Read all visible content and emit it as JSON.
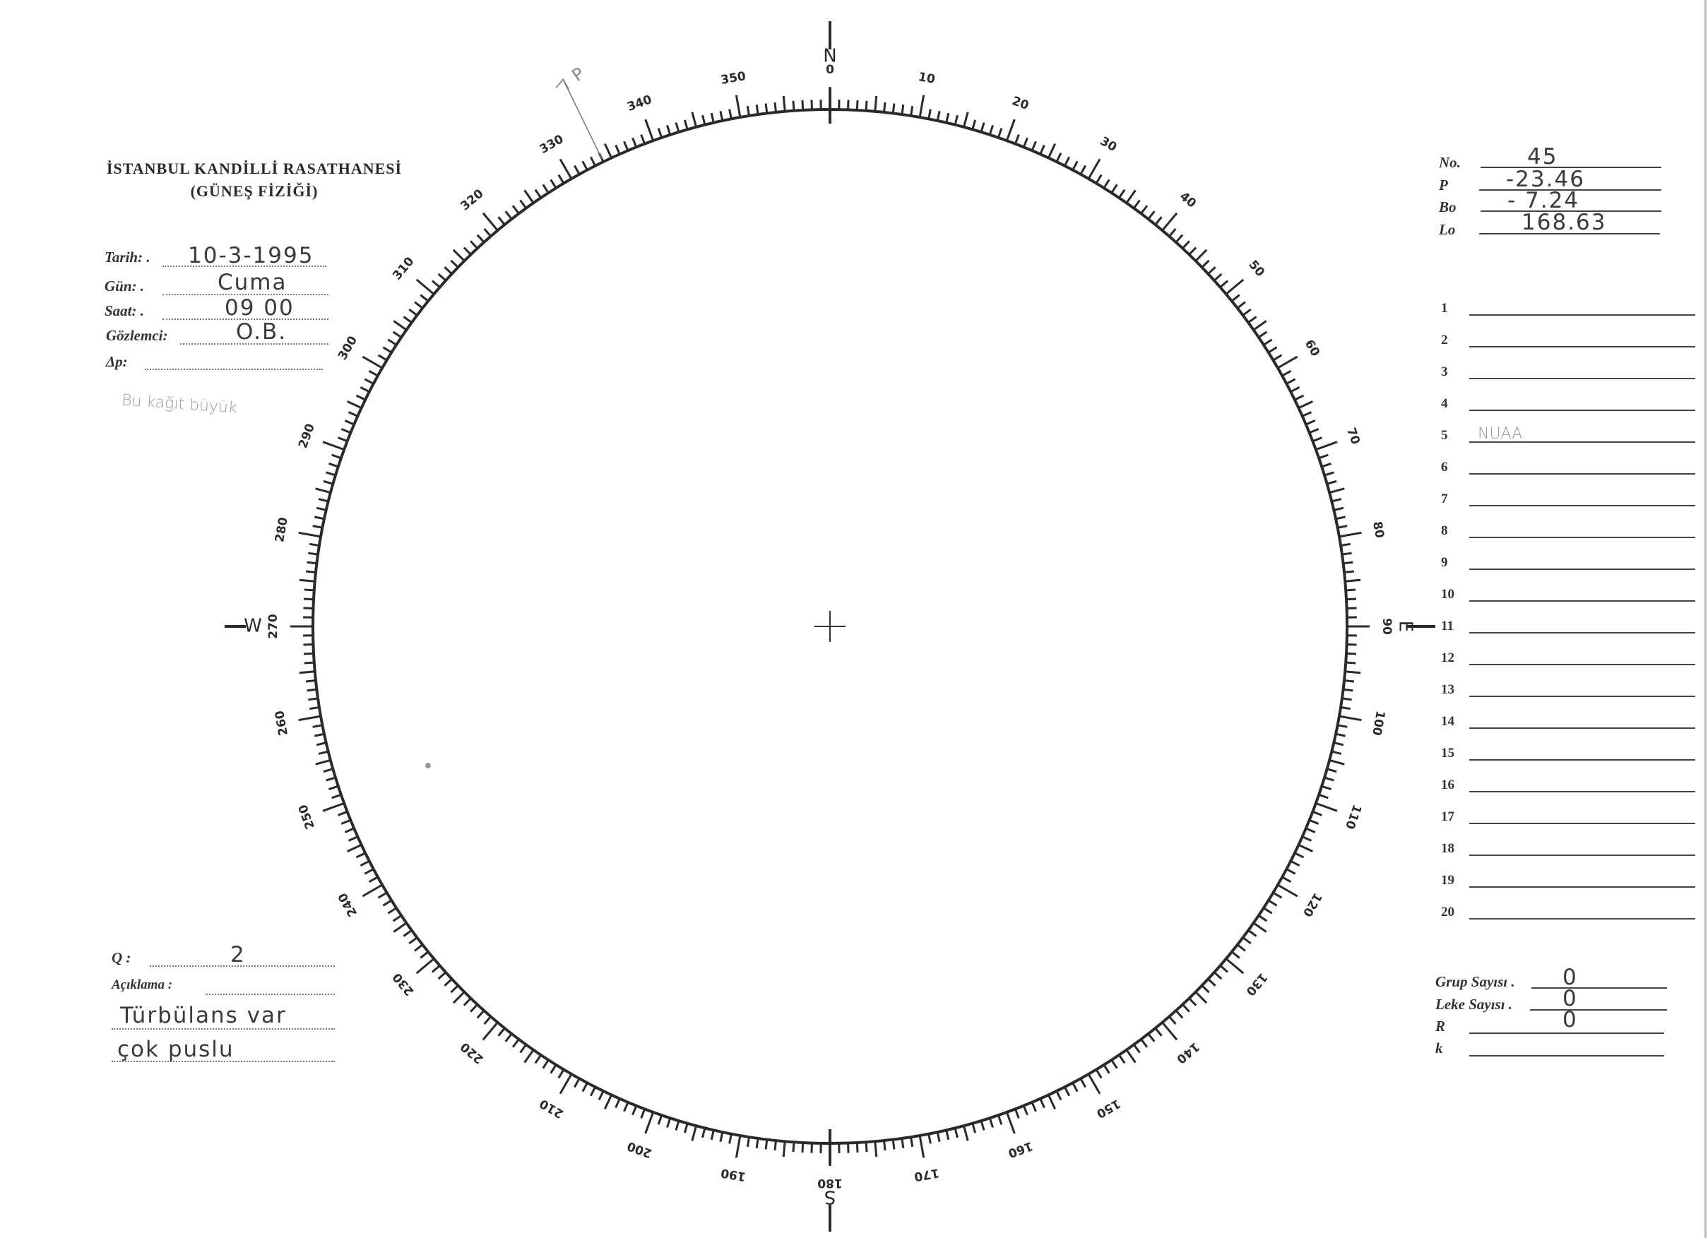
{
  "header": {
    "institution": "İSTANBUL KANDİLLİ RASATHANESİ",
    "department": "(GÜNEŞ FİZİĞİ)"
  },
  "observation": {
    "date_label": "Tarih: .",
    "date_value": "10-3-1995",
    "day_label": "Gün: .",
    "day_value": "Cuma",
    "time_label": "Saat: .",
    "time_value": "09 00",
    "observer_label": "Gözlemci:",
    "observer_value": "O.B.",
    "delta_p_label": "Δp:",
    "delta_p_value": "",
    "pencil_note": "Bu kağıt büyük"
  },
  "quality": {
    "q_label": "Q :",
    "q_value": "2",
    "remarks_label": "Açıklama :",
    "remarks_line1": "Türbülans var",
    "remarks_line2": "çok puslu"
  },
  "ephemeris": {
    "no_label": "No.",
    "no_value": "45",
    "p_label": "P",
    "p_value": "-23.46",
    "bo_label": "Bo",
    "bo_value": "- 7.24",
    "lo_label": "Lo",
    "lo_value": "168.63"
  },
  "group_lines": {
    "numbers": [
      "1",
      "2",
      "3",
      "4",
      "5",
      "6",
      "7",
      "8",
      "9",
      "10",
      "11",
      "12",
      "13",
      "14",
      "15",
      "16",
      "17",
      "18",
      "19",
      "20"
    ],
    "line5_note": "NUAA"
  },
  "counts": {
    "group_label": "Grup Sayısı .",
    "group_value": "0",
    "spot_label": "Leke Sayısı .",
    "spot_value": "0",
    "r_label": "R",
    "r_value": "0",
    "k_label": "k",
    "k_value": ""
  },
  "disk": {
    "scale_labels": [
      "0",
      "10",
      "20",
      "30",
      "40",
      "50",
      "60",
      "70",
      "80",
      "90",
      "100",
      "110",
      "120",
      "130",
      "140",
      "150",
      "160",
      "170",
      "180",
      "190",
      "200",
      "210",
      "220",
      "230",
      "240",
      "250",
      "260",
      "270",
      "280",
      "290",
      "300",
      "310",
      "320",
      "330",
      "340",
      "350"
    ],
    "cardinal": {
      "north": "N",
      "east": "E",
      "south": "S",
      "west": "W"
    },
    "pole_arrow_label": "P",
    "pole_arrow_angle_deg": 334
  }
}
